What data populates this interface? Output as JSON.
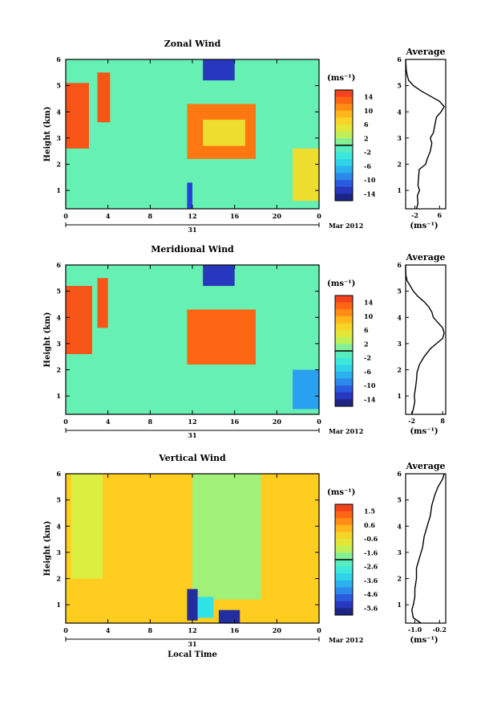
{
  "chart_data": [
    {
      "type": "heatmap",
      "title": "Zonal Wind",
      "ylabel": "Height (km)",
      "xlabel": "",
      "x_ticks": [
        "0",
        "4",
        "8",
        "12",
        "16",
        "20",
        "0"
      ],
      "y_ticks": [
        "1",
        "2",
        "3",
        "4",
        "5",
        "6"
      ],
      "ylim": [
        0.3,
        6.0
      ],
      "xlim_hours": [
        0,
        24
      ],
      "date_day": "31",
      "date_month": "Mar 2012",
      "colorbar": {
        "unit": "(ms⁻¹)",
        "ticks": [
          "14",
          "10",
          "6",
          "2",
          "-2",
          "-6",
          "-10",
          "-14"
        ],
        "range": [
          -16,
          16
        ]
      },
      "regions": [
        {
          "x": [
            0,
            2.2
          ],
          "y": [
            2.6,
            5.1
          ],
          "v": 14
        },
        {
          "x": [
            3.0,
            4.2
          ],
          "y": [
            3.6,
            5.5
          ],
          "v": 14
        },
        {
          "x": [
            11.5,
            18.0
          ],
          "y": [
            2.2,
            4.3
          ],
          "v": 12
        },
        {
          "x": [
            13.0,
            17.0
          ],
          "y": [
            2.7,
            3.7
          ],
          "v": 6
        },
        {
          "x": [
            13.0,
            16.0
          ],
          "y": [
            5.2,
            6.0
          ],
          "v": -13
        },
        {
          "x": [
            21.5,
            24.0
          ],
          "y": [
            0.6,
            2.6
          ],
          "v": 6
        },
        {
          "x": [
            11.5,
            12.0
          ],
          "y": [
            0.3,
            1.3
          ],
          "v": -12
        }
      ],
      "background_value": 0,
      "profile": {
        "title": "Average",
        "xlabel": "(ms⁻¹)",
        "x_ticks": [
          "-2",
          "6"
        ],
        "xlim": [
          -5,
          8
        ],
        "heights": [
          0.3,
          0.5,
          0.8,
          1.0,
          1.2,
          1.5,
          1.8,
          2.0,
          2.2,
          2.5,
          2.8,
          3.0,
          3.2,
          3.5,
          3.8,
          4.0,
          4.2,
          4.4,
          4.6,
          4.8,
          5.0,
          5.2,
          5.4,
          5.6,
          5.8,
          6.0
        ],
        "values": [
          -1.5,
          -1.0,
          -1.2,
          -0.5,
          -1.0,
          -0.8,
          -0.6,
          1.5,
          2.0,
          3.0,
          3.5,
          3.0,
          4.0,
          4.5,
          5.0,
          6.5,
          7.5,
          6.0,
          3.0,
          0.0,
          -2.5,
          -4.0,
          -4.5,
          -4.8,
          -4.9,
          -5.0
        ]
      }
    },
    {
      "type": "heatmap",
      "title": "Meridional Wind",
      "ylabel": "Height (km)",
      "xlabel": "",
      "x_ticks": [
        "0",
        "4",
        "8",
        "12",
        "16",
        "20",
        "0"
      ],
      "y_ticks": [
        "1",
        "2",
        "3",
        "4",
        "5",
        "6"
      ],
      "ylim": [
        0.3,
        6.0
      ],
      "xlim_hours": [
        0,
        24
      ],
      "date_day": "31",
      "date_month": "Mar 2012",
      "colorbar": {
        "unit": "(ms⁻¹)",
        "ticks": [
          "14",
          "10",
          "6",
          "2",
          "-2",
          "-6",
          "-10",
          "-14"
        ],
        "range": [
          -16,
          16
        ]
      },
      "regions": [
        {
          "x": [
            0,
            2.5
          ],
          "y": [
            2.6,
            5.2
          ],
          "v": 14
        },
        {
          "x": [
            3.0,
            4.0
          ],
          "y": [
            3.6,
            5.5
          ],
          "v": 14
        },
        {
          "x": [
            11.5,
            18.0
          ],
          "y": [
            2.2,
            4.3
          ],
          "v": 13
        },
        {
          "x": [
            13.0,
            16.0
          ],
          "y": [
            5.2,
            6.0
          ],
          "v": -13
        },
        {
          "x": [
            21.5,
            24.0
          ],
          "y": [
            0.5,
            2.0
          ],
          "v": -8
        }
      ],
      "background_value": 0,
      "profile": {
        "title": "Average",
        "xlabel": "(ms⁻¹)",
        "x_ticks": [
          "-2",
          "8"
        ],
        "xlim": [
          -4,
          9
        ],
        "heights": [
          0.3,
          0.5,
          0.8,
          1.0,
          1.3,
          1.6,
          1.9,
          2.2,
          2.5,
          2.8,
          3.0,
          3.2,
          3.4,
          3.6,
          3.8,
          4.0,
          4.2,
          4.4,
          4.6,
          4.8,
          5.0,
          5.2,
          5.4,
          5.6,
          5.8,
          6.0
        ],
        "values": [
          -2.0,
          -1.5,
          -1.0,
          -1.2,
          -0.8,
          -0.5,
          -0.3,
          0.5,
          2.0,
          4.0,
          6.0,
          8.0,
          8.5,
          8.0,
          6.5,
          5.0,
          4.5,
          3.5,
          2.0,
          0.0,
          -1.5,
          -2.5,
          -3.5,
          -3.9,
          -4.0,
          -4.0
        ]
      }
    },
    {
      "type": "heatmap",
      "title": "Vertical Wind",
      "ylabel": "Height (km)",
      "xlabel": "Local Time",
      "x_ticks": [
        "0",
        "4",
        "8",
        "12",
        "16",
        "20",
        "0"
      ],
      "y_ticks": [
        "1",
        "2",
        "3",
        "4",
        "5",
        "6"
      ],
      "ylim": [
        0.3,
        6.0
      ],
      "xlim_hours": [
        0,
        24
      ],
      "date_day": "31",
      "date_month": "Mar 2012",
      "colorbar": {
        "unit": "(ms⁻¹)",
        "ticks": [
          "1.5",
          "0.6",
          "-0.6",
          "-1.6",
          "-2.6",
          "-3.6",
          "-4.6",
          "-5.6"
        ],
        "range": [
          -6,
          2
        ]
      },
      "regions": [
        {
          "x": [
            0,
            24
          ],
          "y": [
            0.3,
            6.0
          ],
          "v": 0.0
        },
        {
          "x": [
            12.0,
            18.5
          ],
          "y": [
            1.2,
            6.0
          ],
          "v": -1.5
        },
        {
          "x": [
            0.5,
            3.5
          ],
          "y": [
            2.0,
            6.0
          ],
          "v": -1.0
        },
        {
          "x": [
            11.5,
            12.5
          ],
          "y": [
            0.4,
            1.6
          ],
          "v": -5.5
        },
        {
          "x": [
            14.5,
            16.5
          ],
          "y": [
            0.3,
            0.8
          ],
          "v": -5.5
        },
        {
          "x": [
            12.5,
            14.0
          ],
          "y": [
            0.5,
            1.3
          ],
          "v": -3.0
        }
      ],
      "background_value": 0.0,
      "profile": {
        "title": "Average",
        "xlabel": "(ms⁻¹)",
        "x_ticks": [
          "-1.0",
          "-0.2"
        ],
        "xlim": [
          -1.3,
          0.0
        ],
        "heights": [
          0.3,
          0.5,
          0.8,
          1.0,
          1.3,
          1.6,
          2.0,
          2.4,
          2.8,
          3.2,
          3.6,
          4.0,
          4.4,
          4.8,
          5.2,
          5.5,
          5.8,
          6.0
        ],
        "values": [
          -0.8,
          -1.05,
          -1.1,
          -1.05,
          -1.0,
          -1.0,
          -0.95,
          -0.95,
          -0.85,
          -0.75,
          -0.7,
          -0.6,
          -0.5,
          -0.45,
          -0.35,
          -0.25,
          -0.1,
          -0.05
        ]
      }
    }
  ]
}
